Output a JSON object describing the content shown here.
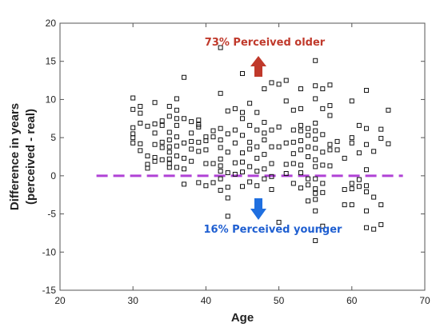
{
  "chart_data": {
    "type": "scatter",
    "xlabel": "Age",
    "ylabel_lines": [
      "Difference in years",
      "(perceived - real)"
    ],
    "xlim": [
      20,
      70
    ],
    "ylim": [
      -15,
      20
    ],
    "x_ticks": [
      20,
      30,
      40,
      50,
      60,
      70
    ],
    "y_ticks": [
      -15,
      -10,
      -5,
      0,
      5,
      10,
      15,
      20
    ],
    "grid": false,
    "reference_line": {
      "y": 0,
      "color": "#b042d6",
      "style": "dashed"
    },
    "annotations": [
      {
        "text": "73% Perceived older",
        "color": "#c0392b",
        "arrow": "up"
      },
      {
        "text": "16% Perceived younger",
        "color": "#1f5fd1",
        "arrow": "down"
      }
    ],
    "marker": "hollow-square",
    "points": [
      [
        30,
        10.2
      ],
      [
        30,
        8.7
      ],
      [
        30,
        6.3
      ],
      [
        30,
        5.5
      ],
      [
        30,
        5.0
      ],
      [
        30,
        4.3
      ],
      [
        31,
        9.1
      ],
      [
        31,
        8.2
      ],
      [
        31,
        6.9
      ],
      [
        31,
        4.2
      ],
      [
        31,
        3.3
      ],
      [
        32,
        6.5
      ],
      [
        32,
        2.6
      ],
      [
        32,
        1.5
      ],
      [
        32,
        1.0
      ],
      [
        33,
        9.6
      ],
      [
        33,
        6.8
      ],
      [
        33,
        5.6
      ],
      [
        33,
        4.1
      ],
      [
        33,
        2.4
      ],
      [
        33,
        1.9
      ],
      [
        34,
        7.2
      ],
      [
        34,
        6.6
      ],
      [
        34,
        4.4
      ],
      [
        34,
        3.7
      ],
      [
        34,
        2.1
      ],
      [
        35,
        9.1
      ],
      [
        35,
        7.8
      ],
      [
        35,
        5.7
      ],
      [
        35,
        4.7
      ],
      [
        35,
        3.8
      ],
      [
        35,
        3.1
      ],
      [
        35,
        2.2
      ],
      [
        35,
        1.6
      ],
      [
        35,
        1.1
      ],
      [
        36,
        10.1
      ],
      [
        36,
        8.6
      ],
      [
        36,
        7.5
      ],
      [
        36,
        6.6
      ],
      [
        36,
        5.1
      ],
      [
        36,
        3.9
      ],
      [
        36,
        2.6
      ],
      [
        36,
        1.1
      ],
      [
        37,
        12.9
      ],
      [
        37,
        7.5
      ],
      [
        37,
        4.3
      ],
      [
        37,
        2.3
      ],
      [
        37,
        0.9
      ],
      [
        37,
        -1.1
      ],
      [
        38,
        7.1
      ],
      [
        38,
        5.6
      ],
      [
        38,
        4.5
      ],
      [
        38,
        3.5
      ],
      [
        38,
        1.9
      ],
      [
        39,
        7.3
      ],
      [
        39,
        6.7
      ],
      [
        39,
        6.4
      ],
      [
        39,
        4.4
      ],
      [
        39,
        3.2
      ],
      [
        39,
        -0.9
      ],
      [
        40,
        5.1
      ],
      [
        40,
        4.6
      ],
      [
        40,
        3.4
      ],
      [
        40,
        1.6
      ],
      [
        40,
        -1.3
      ],
      [
        41,
        5.9
      ],
      [
        41,
        5.1
      ],
      [
        41,
        1.6
      ],
      [
        41,
        -0.9
      ],
      [
        42,
        16.8
      ],
      [
        42,
        10.8
      ],
      [
        42,
        6.2
      ],
      [
        42,
        4.7
      ],
      [
        42,
        3.7
      ],
      [
        42,
        2.2
      ],
      [
        42,
        1.3
      ],
      [
        42,
        0.6
      ],
      [
        42,
        -0.4
      ],
      [
        42,
        -1.9
      ],
      [
        43,
        8.5
      ],
      [
        43,
        5.5
      ],
      [
        43,
        3.1
      ],
      [
        43,
        0.4
      ],
      [
        43,
        -1.5
      ],
      [
        43,
        -2.9
      ],
      [
        43,
        -5.3
      ],
      [
        44,
        8.8
      ],
      [
        44,
        6.0
      ],
      [
        44,
        4.3
      ],
      [
        44,
        1.7
      ],
      [
        44,
        0.2
      ],
      [
        45,
        13.4
      ],
      [
        45,
        8.3
      ],
      [
        45,
        7.5
      ],
      [
        45,
        5.3
      ],
      [
        45,
        3.0
      ],
      [
        45,
        1.8
      ],
      [
        45,
        0.5
      ],
      [
        45,
        -1.4
      ],
      [
        46,
        9.5
      ],
      [
        46,
        6.6
      ],
      [
        46,
        4.4
      ],
      [
        46,
        3.5
      ],
      [
        46,
        1.2
      ],
      [
        46,
        -0.8
      ],
      [
        47,
        8.3
      ],
      [
        47,
        6.0
      ],
      [
        47,
        3.8
      ],
      [
        47,
        2.3
      ],
      [
        47,
        0.6
      ],
      [
        47,
        -1.3
      ],
      [
        48,
        11.4
      ],
      [
        48,
        7.0
      ],
      [
        48,
        5.6
      ],
      [
        48,
        4.7
      ],
      [
        48,
        2.8
      ],
      [
        48,
        0.9
      ],
      [
        48,
        -0.4
      ],
      [
        49,
        12.2
      ],
      [
        49,
        6.0
      ],
      [
        49,
        3.8
      ],
      [
        49,
        1.6
      ],
      [
        49,
        -0.1
      ],
      [
        49,
        -1.8
      ],
      [
        50,
        12.0
      ],
      [
        50,
        6.4
      ],
      [
        50,
        3.8
      ],
      [
        50,
        -6.1
      ],
      [
        51,
        12.5
      ],
      [
        51,
        9.8
      ],
      [
        51,
        4.3
      ],
      [
        51,
        1.5
      ],
      [
        51,
        0.3
      ],
      [
        52,
        8.6
      ],
      [
        52,
        6.0
      ],
      [
        52,
        4.4
      ],
      [
        52,
        2.9
      ],
      [
        52,
        1.6
      ],
      [
        52,
        -1.0
      ],
      [
        53,
        11.4
      ],
      [
        53,
        8.8
      ],
      [
        53,
        6.6
      ],
      [
        53,
        5.9
      ],
      [
        53,
        4.6
      ],
      [
        53,
        3.4
      ],
      [
        53,
        1.4
      ],
      [
        53,
        0.4
      ],
      [
        53,
        -1.6
      ],
      [
        54,
        6.2
      ],
      [
        54,
        5.3
      ],
      [
        54,
        3.8
      ],
      [
        54,
        2.5
      ],
      [
        54,
        -0.4
      ],
      [
        54,
        -1.2
      ],
      [
        54,
        -3.3
      ],
      [
        55,
        15.1
      ],
      [
        55,
        11.8
      ],
      [
        55,
        10.1
      ],
      [
        55,
        6.9
      ],
      [
        55,
        5.9
      ],
      [
        55,
        4.8
      ],
      [
        55,
        3.6
      ],
      [
        55,
        2.1
      ],
      [
        55,
        1.2
      ],
      [
        55,
        -0.4
      ],
      [
        55,
        -1.7
      ],
      [
        55,
        -2.3
      ],
      [
        55,
        -3.1
      ],
      [
        55,
        -4.6
      ],
      [
        55,
        -8.5
      ],
      [
        56,
        11.4
      ],
      [
        56,
        8.8
      ],
      [
        56,
        5.4
      ],
      [
        56,
        3.1
      ],
      [
        56,
        1.4
      ],
      [
        56,
        -1.0
      ],
      [
        56,
        -2.2
      ],
      [
        56,
        -6.6
      ],
      [
        57,
        11.9
      ],
      [
        57,
        9.2
      ],
      [
        57,
        7.9
      ],
      [
        57,
        4.1
      ],
      [
        57,
        3.4
      ],
      [
        57,
        1.3
      ],
      [
        58,
        4.5
      ],
      [
        58,
        3.4
      ],
      [
        59,
        2.3
      ],
      [
        59,
        -1.8
      ],
      [
        59,
        -3.8
      ],
      [
        60,
        9.8
      ],
      [
        60,
        5.0
      ],
      [
        60,
        4.3
      ],
      [
        60,
        -1.0
      ],
      [
        60,
        -1.7
      ],
      [
        60,
        -3.8
      ],
      [
        61,
        6.6
      ],
      [
        61,
        3.0
      ],
      [
        61,
        -0.5
      ],
      [
        61,
        -1.4
      ],
      [
        62,
        11.2
      ],
      [
        62,
        6.2
      ],
      [
        62,
        4.1
      ],
      [
        62,
        0.8
      ],
      [
        62,
        -1.3
      ],
      [
        62,
        -2.1
      ],
      [
        62,
        -4.6
      ],
      [
        62,
        -6.8
      ],
      [
        63,
        3.2
      ],
      [
        63,
        -2.8
      ],
      [
        63,
        -7.0
      ],
      [
        64,
        6.1
      ],
      [
        64,
        4.9
      ],
      [
        64,
        -3.8
      ],
      [
        64,
        -6.4
      ],
      [
        65,
        8.6
      ],
      [
        65,
        4.2
      ]
    ]
  }
}
